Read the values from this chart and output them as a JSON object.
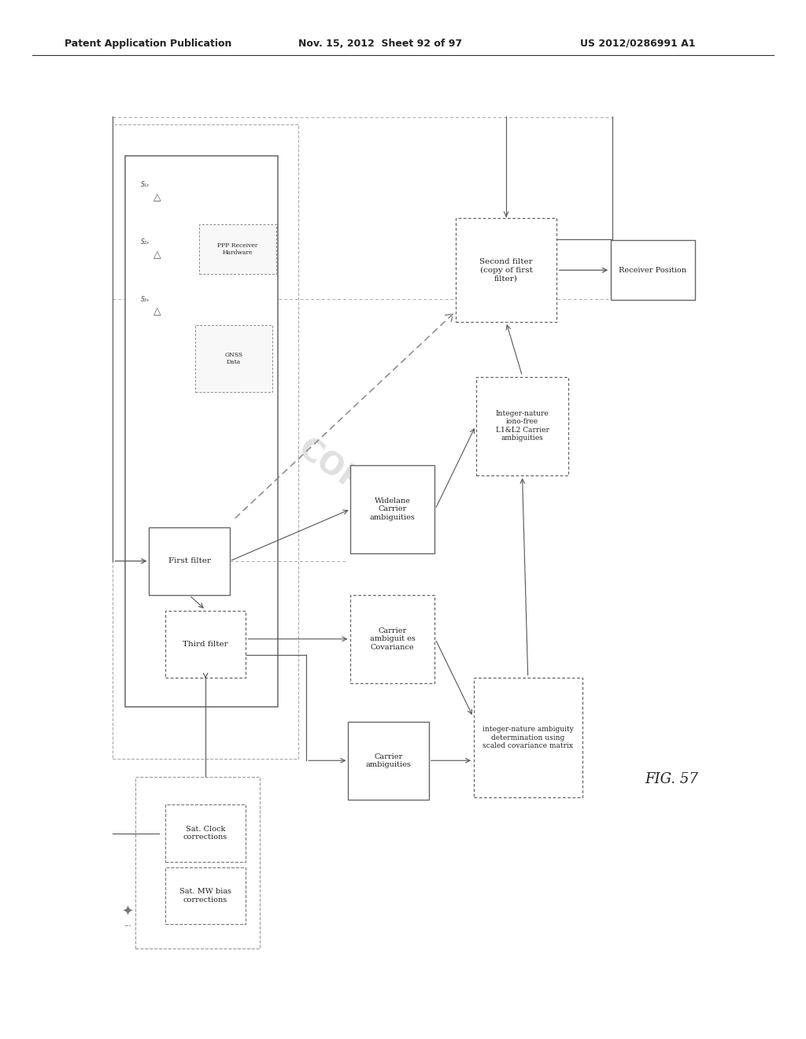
{
  "header_left": "Patent Application Publication",
  "header_mid": "Nov. 15, 2012  Sheet 92 of 97",
  "header_right": "US 2012/0286991 A1",
  "fig_label": "FIG. 57",
  "bg_color": "#ffffff",
  "text_color": "#222222",
  "line_color": "#555555"
}
